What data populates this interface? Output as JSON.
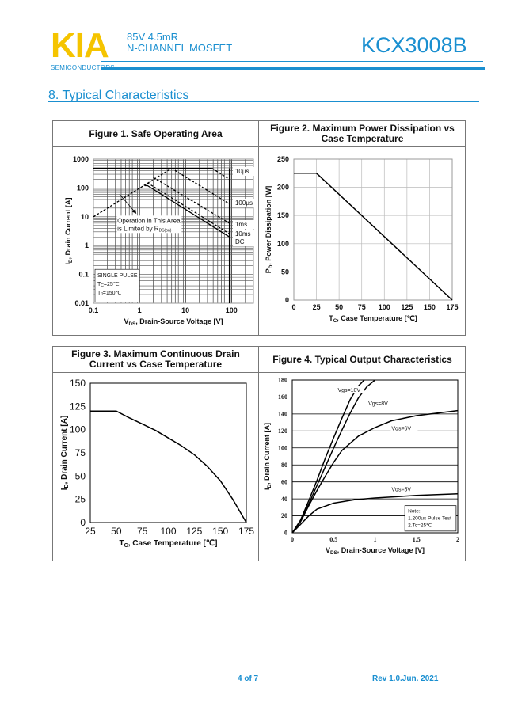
{
  "header": {
    "logo": "KIA",
    "logo_sub": "SEMICONDUCTORS",
    "spec_line1": "85V   4.5mR",
    "spec_line2": "N-CHANNEL MOSFET",
    "part_number": "KCX3008B"
  },
  "section_title": "8.  Typical Characteristics",
  "colors": {
    "brand_blue": "#1a8fd0",
    "logo_yellow": "#f5c400"
  },
  "footer": {
    "page": "4 of 7",
    "revision": "Rev 1.0.Jun. 2021"
  },
  "chart_data": [
    {
      "id": "fig1",
      "type": "line",
      "title": "Figure 1. Safe Operating Area",
      "xlabel": {
        "main": "V",
        "sub": "DS",
        "rest": ", Drain-Source Voltage [V]"
      },
      "ylabel": {
        "main": "I",
        "sub": "D",
        "rest": ", Drain Current [A]"
      },
      "xscale": "log",
      "yscale": "log",
      "xlim": [
        0.1,
        300
      ],
      "ylim": [
        0.01,
        1000
      ],
      "xticks": [
        0.1,
        1,
        10,
        100
      ],
      "xtick_labels": [
        "0.1",
        "1",
        "10",
        "100"
      ],
      "yticks": [
        1000,
        100,
        10,
        1,
        0.1,
        0.01
      ],
      "ytick_labels": [
        "1000",
        "100",
        "10",
        "1",
        "0.1",
        "0.01"
      ],
      "grid": true,
      "series": [
        {
          "name": "10µs",
          "dashed": true,
          "points": [
            [
              38,
              480
            ],
            [
              90,
              200
            ]
          ]
        },
        {
          "name": "100µs",
          "dashed": true,
          "points": [
            [
              5,
              480
            ],
            [
              90,
              28
            ]
          ]
        },
        {
          "name": "1ms",
          "dashed": true,
          "points": [
            [
              2,
              230
            ],
            [
              90,
              6
            ]
          ]
        },
        {
          "name": "10ms",
          "dashed": true,
          "points": [
            [
              1.5,
              150
            ],
            [
              90,
              2.6
            ]
          ]
        },
        {
          "name": "DC",
          "dashed": false,
          "points": [
            [
              1.3,
              120
            ],
            [
              1.5,
              120
            ],
            [
              90,
              2
            ]
          ]
        },
        {
          "name": "",
          "dashed": false,
          "points": [
            [
              0.1,
              480
            ],
            [
              38,
              480
            ]
          ]
        },
        {
          "name": "",
          "dashed": true,
          "points": [
            [
              0.1,
              10
            ],
            [
              5,
              480
            ]
          ]
        },
        {
          "name": "",
          "dashed": false,
          "points": [
            [
              90,
              0.01
            ],
            [
              90,
              480
            ]
          ]
        }
      ],
      "annotations": {
        "rds_note": [
          "Operation in This Area",
          "is Limited by R"
        ],
        "rds_sub": "DS(on)",
        "conditions": [
          "SINGLE PULSE",
          "T",
          "T"
        ],
        "cond_subs": [
          "",
          "C",
          "J"
        ],
        "cond_vals": [
          "",
          "=25℃",
          "=150℃"
        ]
      }
    },
    {
      "id": "fig2",
      "type": "line",
      "title": "Figure 2. Maximum Power Dissipation vs Case Temperature",
      "xlabel": {
        "main": "T",
        "sub": "C",
        "rest": ", Case Temperature [℃]"
      },
      "ylabel": {
        "main": "P",
        "sub": "D",
        "rest": ", Power Dissipation [W]"
      },
      "xlim": [
        0,
        175
      ],
      "ylim": [
        0,
        250
      ],
      "xticks": [
        0,
        25,
        50,
        75,
        100,
        125,
        150,
        175
      ],
      "yticks": [
        0,
        50,
        100,
        150,
        200,
        250
      ],
      "grid": true,
      "series": [
        {
          "name": "",
          "points": [
            [
              0,
              225
            ],
            [
              25,
              225
            ],
            [
              175,
              0
            ]
          ]
        }
      ]
    },
    {
      "id": "fig3",
      "type": "line",
      "title": "Figure 3. Maximum Continuous Drain Current vs Case Temperature",
      "xlabel": {
        "main": "T",
        "sub": "C",
        "rest": ", Case Temperature [℃]"
      },
      "ylabel": {
        "main": "I",
        "sub": "D",
        "rest": ", Drain Current [A]"
      },
      "xlim": [
        25,
        175
      ],
      "ylim": [
        0,
        150
      ],
      "xticks": [
        25,
        50,
        75,
        100,
        125,
        150,
        175
      ],
      "yticks": [
        0,
        25,
        50,
        75,
        100,
        125,
        150
      ],
      "grid": false,
      "series": [
        {
          "name": "",
          "points": [
            [
              25,
              120
            ],
            [
              50,
              120
            ],
            [
              62,
              113
            ],
            [
              75,
              106
            ],
            [
              88,
              99
            ],
            [
              100,
              91
            ],
            [
              112,
              83
            ],
            [
              125,
              73
            ],
            [
              137,
              61
            ],
            [
              150,
              45
            ],
            [
              162,
              25
            ],
            [
              175,
              0
            ]
          ]
        }
      ]
    },
    {
      "id": "fig4",
      "type": "line",
      "title": "Figure 4. Typical Output Characteristics",
      "xlabel": {
        "main": "V",
        "sub": "DS",
        "rest": ", Drain-Source Voltage [V]"
      },
      "ylabel": {
        "main": "I",
        "sub": "D",
        "rest": ", Drain Current [A]"
      },
      "xlim": [
        0,
        2
      ],
      "ylim": [
        0,
        180
      ],
      "xticks": [
        0,
        0.5,
        1,
        1.5,
        2
      ],
      "xtick_labels": [
        "0",
        "0.5",
        "1",
        "1.5",
        "2"
      ],
      "yticks": [
        0,
        20,
        40,
        60,
        80,
        100,
        120,
        140,
        160,
        180
      ],
      "grid": "horizontal",
      "series": [
        {
          "name": "Vgs=10V",
          "points": [
            [
              0,
              0
            ],
            [
              0.1,
              15
            ],
            [
              0.2,
              38
            ],
            [
              0.3,
              62
            ],
            [
              0.4,
              88
            ],
            [
              0.5,
              112
            ],
            [
              0.6,
              135
            ],
            [
              0.7,
              157
            ],
            [
              0.8,
              173
            ],
            [
              0.87,
              180
            ]
          ]
        },
        {
          "name": "Vgs=8V",
          "points": [
            [
              0,
              0
            ],
            [
              0.1,
              14
            ],
            [
              0.2,
              34
            ],
            [
              0.3,
              56
            ],
            [
              0.4,
              78
            ],
            [
              0.5,
              100
            ],
            [
              0.6,
              121
            ],
            [
              0.7,
              141
            ],
            [
              0.8,
              159
            ],
            [
              0.9,
              172
            ],
            [
              1.0,
              180
            ]
          ]
        },
        {
          "name": "Vgs=6V",
          "points": [
            [
              0,
              0
            ],
            [
              0.1,
              13
            ],
            [
              0.2,
              32
            ],
            [
              0.3,
              50
            ],
            [
              0.4,
              67
            ],
            [
              0.5,
              83
            ],
            [
              0.6,
              97
            ],
            [
              0.8,
              114
            ],
            [
              1.0,
              124
            ],
            [
              1.2,
              132
            ],
            [
              1.5,
              138
            ],
            [
              2.0,
              144
            ]
          ]
        },
        {
          "name": "Vgs=5V",
          "points": [
            [
              0,
              0
            ],
            [
              0.1,
              10
            ],
            [
              0.2,
              20
            ],
            [
              0.3,
              28
            ],
            [
              0.5,
              35
            ],
            [
              0.75,
              39
            ],
            [
              1.0,
              41
            ],
            [
              1.5,
              44
            ],
            [
              2.0,
              46
            ]
          ]
        }
      ],
      "note": [
        "Note:",
        "1.200us Pulse Test",
        "2.Tc=25℃"
      ]
    }
  ]
}
